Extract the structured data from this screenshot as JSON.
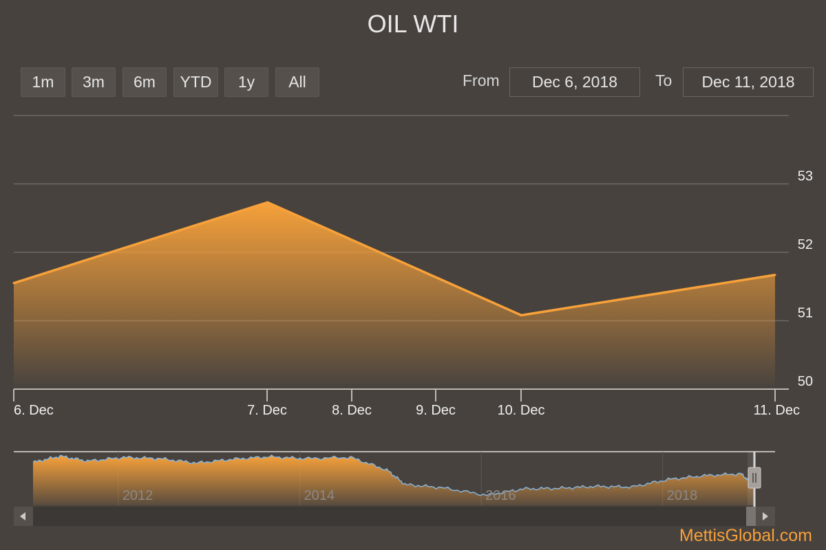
{
  "header": {
    "title": "OIL WTI"
  },
  "range_selector": {
    "buttons": [
      {
        "label": "1m"
      },
      {
        "label": "3m"
      },
      {
        "label": "6m"
      },
      {
        "label": "YTD"
      },
      {
        "label": "1y"
      },
      {
        "label": "All"
      }
    ],
    "from_label": "From",
    "from_value": "Dec 6, 2018",
    "to_label": "To",
    "to_value": "Dec 11, 2018"
  },
  "chart_data": {
    "type": "area",
    "x": [
      "2018-12-06",
      "2018-12-07",
      "2018-12-10",
      "2018-12-11"
    ],
    "x_tick_labels": [
      "6. Dec",
      "7. Dec",
      "8. Dec",
      "9. Dec",
      "10. Dec",
      "11. Dec"
    ],
    "series": [
      {
        "values": [
          51.55,
          52.73,
          51.08,
          51.67
        ],
        "color": "#f7a13a"
      }
    ],
    "y_ticks": [
      50,
      51,
      52,
      53
    ],
    "ylim": [
      50,
      54
    ],
    "grid": true,
    "y_axis_side": "right",
    "navigator": {
      "x_tick_labels": [
        "2012",
        "2014",
        "2016",
        "2018"
      ],
      "years": [
        2011.0,
        2011.3,
        2011.6,
        2012.0,
        2012.4,
        2012.8,
        2013.2,
        2013.6,
        2014.0,
        2014.5,
        2014.9,
        2015.1,
        2015.5,
        2016.0,
        2016.4,
        2016.8,
        2017.2,
        2017.6,
        2018.0,
        2018.4,
        2018.8,
        2018.95
      ],
      "values": [
        88,
        98,
        90,
        96,
        94,
        87,
        93,
        97,
        94,
        96,
        76,
        53,
        48,
        36,
        46,
        47,
        50,
        49,
        61,
        67,
        70,
        52
      ]
    }
  },
  "footer": {
    "credit": "MettisGlobal.com"
  },
  "colors": {
    "background": "#47423e",
    "series": "#f7a13a",
    "navigator_line": "#8ab4d8"
  }
}
